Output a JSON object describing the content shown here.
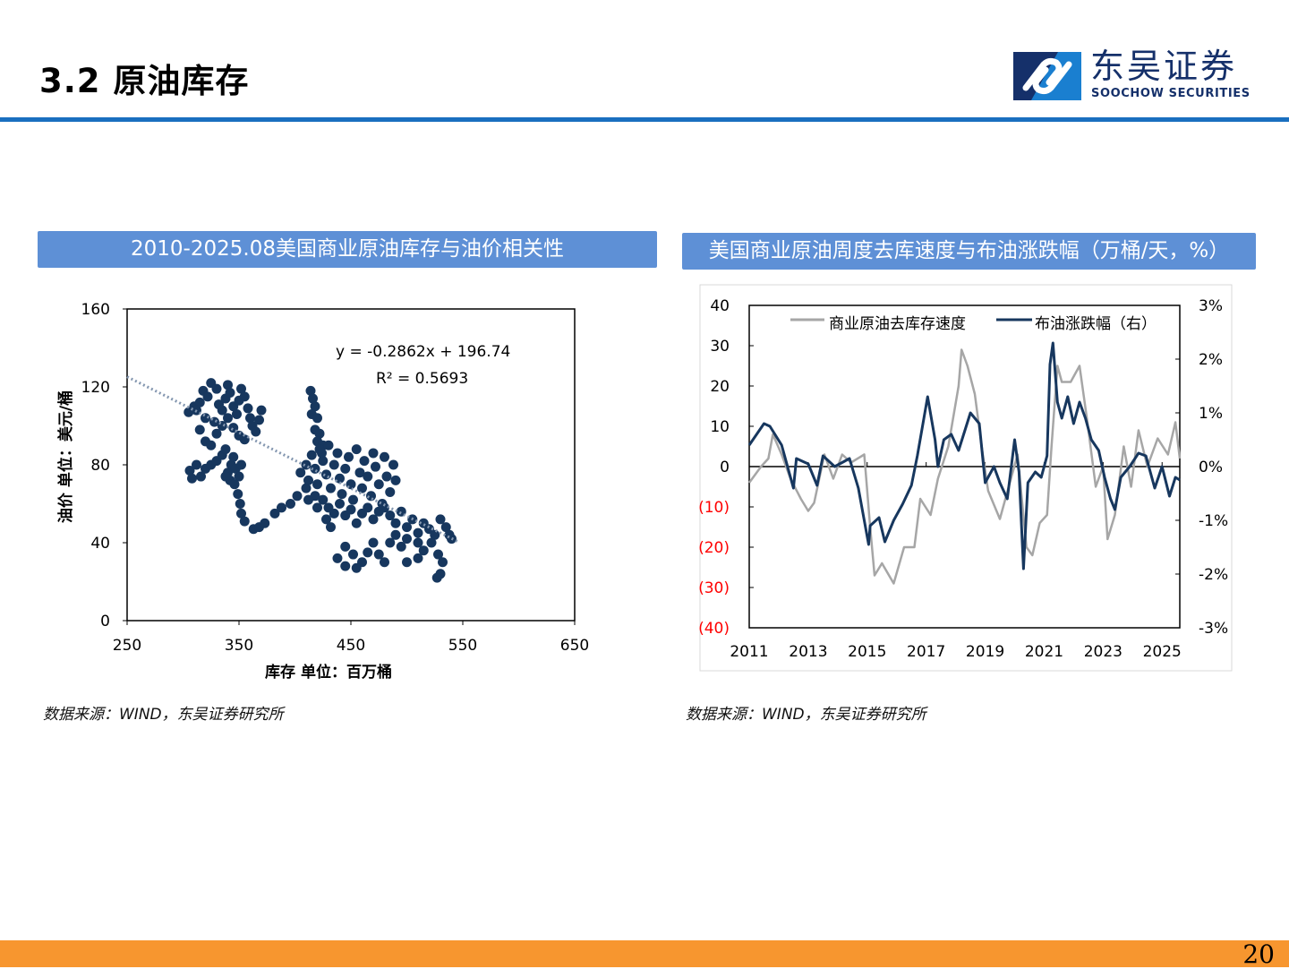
{
  "header": {
    "title": "3.2 原油库存"
  },
  "logo": {
    "name_cn": "东吴证券",
    "name_en": "SOOCHOW SECURITIES",
    "colors": {
      "navy": "#15306a",
      "blue": "#1a7fd0"
    }
  },
  "footer": {
    "page_number": "20",
    "bar_color": "#f7962f"
  },
  "chart_data": [
    {
      "type": "scatter",
      "title": "2010-2025.08美国商业原油库存与油价相关性",
      "xlabel": "库存 单位：百万桶",
      "ylabel": "油价 单位：美元/桶",
      "xlim": [
        250,
        650
      ],
      "ylim": [
        0,
        160
      ],
      "xticks": [
        "250",
        "350",
        "450",
        "550",
        "650"
      ],
      "yticks": [
        "0",
        "40",
        "80",
        "120",
        "160"
      ],
      "trendline": {
        "equation": "y = -0.2862x + 196.74",
        "r2_label": "R² = 0.5693",
        "slope": -0.2862,
        "intercept": 196.74,
        "x_range": [
          250,
          545
        ]
      },
      "point_color": "#17375e",
      "points": [
        [
          305,
          107
        ],
        [
          310,
          110
        ],
        [
          315,
          112
        ],
        [
          318,
          118
        ],
        [
          322,
          115
        ],
        [
          325,
          122
        ],
        [
          330,
          119
        ],
        [
          332,
          111
        ],
        [
          335,
          108
        ],
        [
          338,
          114
        ],
        [
          340,
          121
        ],
        [
          342,
          117
        ],
        [
          345,
          110
        ],
        [
          348,
          106
        ],
        [
          350,
          113
        ],
        [
          352,
          119
        ],
        [
          355,
          115
        ],
        [
          358,
          109
        ],
        [
          360,
          104
        ],
        [
          362,
          100
        ],
        [
          365,
          97
        ],
        [
          368,
          103
        ],
        [
          370,
          108
        ],
        [
          340,
          104
        ],
        [
          335,
          100
        ],
        [
          330,
          96
        ],
        [
          328,
          102
        ],
        [
          320,
          104
        ],
        [
          315,
          98
        ],
        [
          320,
          92
        ],
        [
          325,
          90
        ],
        [
          312,
          108
        ],
        [
          345,
          99
        ],
        [
          350,
          95
        ],
        [
          355,
          93
        ],
        [
          306,
          77
        ],
        [
          308,
          73
        ],
        [
          312,
          80
        ],
        [
          316,
          74
        ],
        [
          320,
          78
        ],
        [
          325,
          80
        ],
        [
          330,
          82
        ],
        [
          335,
          85
        ],
        [
          338,
          88
        ],
        [
          340,
          76
        ],
        [
          343,
          80
        ],
        [
          345,
          84
        ],
        [
          347,
          78
        ],
        [
          350,
          74
        ],
        [
          352,
          80
        ],
        [
          342,
          72
        ],
        [
          346,
          70
        ],
        [
          338,
          74
        ],
        [
          349,
          65
        ],
        [
          351,
          60
        ],
        [
          352,
          55
        ],
        [
          355,
          51
        ],
        [
          363,
          47
        ],
        [
          368,
          48
        ],
        [
          373,
          50
        ],
        [
          382,
          55
        ],
        [
          388,
          58
        ],
        [
          396,
          60
        ],
        [
          402,
          64
        ],
        [
          410,
          68
        ],
        [
          414,
          118
        ],
        [
          416,
          114
        ],
        [
          418,
          110
        ],
        [
          415,
          106
        ],
        [
          420,
          104
        ],
        [
          418,
          98
        ],
        [
          422,
          96
        ],
        [
          420,
          92
        ],
        [
          425,
          90
        ],
        [
          424,
          86
        ],
        [
          405,
          76
        ],
        [
          410,
          80
        ],
        [
          412,
          72
        ],
        [
          415,
          85
        ],
        [
          418,
          78
        ],
        [
          420,
          70
        ],
        [
          422,
          88
        ],
        [
          425,
          82
        ],
        [
          428,
          75
        ],
        [
          430,
          90
        ],
        [
          432,
          68
        ],
        [
          435,
          80
        ],
        [
          438,
          86
        ],
        [
          440,
          73
        ],
        [
          442,
          65
        ],
        [
          445,
          78
        ],
        [
          448,
          84
        ],
        [
          450,
          70
        ],
        [
          452,
          62
        ],
        [
          455,
          88
        ],
        [
          458,
          76
        ],
        [
          460,
          68
        ],
        [
          462,
          82
        ],
        [
          465,
          74
        ],
        [
          468,
          64
        ],
        [
          470,
          86
        ],
        [
          472,
          79
        ],
        [
          475,
          70
        ],
        [
          478,
          60
        ],
        [
          480,
          84
        ],
        [
          482,
          74
        ],
        [
          485,
          66
        ],
        [
          488,
          80
        ],
        [
          490,
          72
        ],
        [
          425,
          62
        ],
        [
          430,
          58
        ],
        [
          435,
          55
        ],
        [
          440,
          60
        ],
        [
          445,
          54
        ],
        [
          450,
          57
        ],
        [
          455,
          50
        ],
        [
          460,
          55
        ],
        [
          465,
          58
        ],
        [
          470,
          52
        ],
        [
          475,
          56
        ],
        [
          418,
          64
        ],
        [
          412,
          62
        ],
        [
          420,
          58
        ],
        [
          428,
          52
        ],
        [
          432,
          48
        ],
        [
          480,
          58
        ],
        [
          485,
          54
        ],
        [
          490,
          50
        ],
        [
          495,
          56
        ],
        [
          500,
          48
        ],
        [
          505,
          52
        ],
        [
          510,
          45
        ],
        [
          515,
          50
        ],
        [
          520,
          47
        ],
        [
          525,
          44
        ],
        [
          530,
          52
        ],
        [
          535,
          48
        ],
        [
          538,
          44
        ],
        [
          540,
          42
        ],
        [
          522,
          40
        ],
        [
          510,
          40
        ],
        [
          500,
          42
        ],
        [
          495,
          38
        ],
        [
          490,
          44
        ],
        [
          485,
          40
        ],
        [
          515,
          36
        ],
        [
          528,
          34
        ],
        [
          532,
          30
        ],
        [
          530,
          24
        ],
        [
          527,
          22
        ],
        [
          470,
          40
        ],
        [
          475,
          34
        ],
        [
          480,
          30
        ],
        [
          460,
          30
        ],
        [
          455,
          27
        ],
        [
          445,
          28
        ],
        [
          438,
          32
        ],
        [
          445,
          38
        ],
        [
          452,
          34
        ],
        [
          465,
          35
        ],
        [
          500,
          30
        ],
        [
          510,
          32
        ]
      ],
      "source": "数据来源：WIND，东吴证券研究所"
    },
    {
      "type": "line",
      "title": "美国商业原油周度去库速度与布油涨跌幅（万桶/天，%）",
      "xlim": [
        2011,
        2025.6
      ],
      "xticks": [
        "2011",
        "2013",
        "2015",
        "2017",
        "2019",
        "2021",
        "2023",
        "2025"
      ],
      "ylim_left": [
        -40,
        40
      ],
      "yticks_left": [
        "40",
        "30",
        "20",
        "10",
        "0",
        "(10)",
        "(20)",
        "(30)",
        "(40)"
      ],
      "ylim_right": [
        -3,
        3
      ],
      "yticks_right": [
        "3%",
        "2%",
        "1%",
        "0%",
        "-1%",
        "-2%",
        "-3%"
      ],
      "negative_tick_color": "#ff0000",
      "series": [
        {
          "name": "商业原油去库存速度",
          "axis": "left",
          "color": "#a6a6a6",
          "x": [
            2011.0,
            2011.4,
            2011.65,
            2011.8,
            2012.1,
            2012.4,
            2012.75,
            2013.0,
            2013.2,
            2013.55,
            2013.85,
            2014.15,
            2014.45,
            2014.9,
            2015.1,
            2015.25,
            2015.5,
            2015.9,
            2016.25,
            2016.6,
            2016.8,
            2017.15,
            2017.4,
            2017.75,
            2018.1,
            2018.2,
            2018.4,
            2018.65,
            2018.9,
            2019.1,
            2019.5,
            2019.8,
            2020.1,
            2020.4,
            2020.6,
            2020.85,
            2021.1,
            2021.25,
            2021.45,
            2021.6,
            2021.9,
            2022.2,
            2022.45,
            2022.75,
            2023.0,
            2023.15,
            2023.4,
            2023.7,
            2023.95,
            2024.2,
            2024.5,
            2024.85,
            2025.2,
            2025.45,
            2025.6
          ],
          "y": [
            -4,
            0,
            2,
            8,
            3,
            -3,
            -8,
            -11,
            -9,
            3,
            -3,
            3,
            1,
            3,
            -15,
            -27,
            -24,
            -29,
            -20,
            -20,
            -8,
            -12,
            -3,
            5,
            20,
            29,
            25,
            18,
            4,
            -6,
            -13,
            -5,
            3,
            -20,
            -22,
            -14,
            -12,
            5,
            25,
            21,
            21,
            25,
            12,
            -5,
            0,
            -18,
            -12,
            5,
            -5,
            9,
            0,
            7,
            3,
            11,
            2
          ]
        },
        {
          "name": "布油涨跌幅（右）",
          "axis": "right",
          "color": "#17375e",
          "x": [
            2011.0,
            2011.5,
            2011.7,
            2012.1,
            2012.5,
            2012.6,
            2013.0,
            2013.3,
            2013.5,
            2013.9,
            2014.4,
            2014.7,
            2015.05,
            2015.1,
            2015.4,
            2015.6,
            2015.9,
            2016.2,
            2016.5,
            2016.7,
            2017.05,
            2017.3,
            2017.4,
            2017.6,
            2017.85,
            2018.1,
            2018.5,
            2018.8,
            2019.0,
            2019.3,
            2019.5,
            2019.75,
            2020.0,
            2020.15,
            2020.3,
            2020.45,
            2020.7,
            2020.9,
            2021.1,
            2021.2,
            2021.3,
            2021.45,
            2021.6,
            2021.8,
            2022.0,
            2022.2,
            2022.4,
            2022.6,
            2022.85,
            2023.05,
            2023.25,
            2023.4,
            2023.6,
            2023.9,
            2024.2,
            2024.45,
            2024.75,
            2025.0,
            2025.25,
            2025.45,
            2025.6
          ],
          "y": [
            0.4,
            0.8,
            0.75,
            0.4,
            -0.4,
            0.15,
            0.05,
            -0.35,
            0.2,
            0.0,
            0.15,
            -0.4,
            -1.45,
            -1.1,
            -0.95,
            -1.4,
            -1.0,
            -0.7,
            -0.35,
            0.2,
            1.3,
            0.5,
            0.0,
            0.5,
            0.6,
            0.3,
            1.0,
            0.8,
            -0.3,
            0.0,
            -0.3,
            -0.6,
            0.5,
            -0.1,
            -1.9,
            -0.3,
            -0.1,
            -0.2,
            0.2,
            1.9,
            2.3,
            1.2,
            0.9,
            1.3,
            0.8,
            1.2,
            0.9,
            0.5,
            0.3,
            -0.2,
            -0.6,
            -0.8,
            -0.2,
            0.0,
            0.25,
            0.2,
            -0.4,
            0.0,
            -0.55,
            -0.2,
            -0.25
          ]
        }
      ],
      "source": "数据来源：WIND，东吴证券研究所"
    }
  ]
}
